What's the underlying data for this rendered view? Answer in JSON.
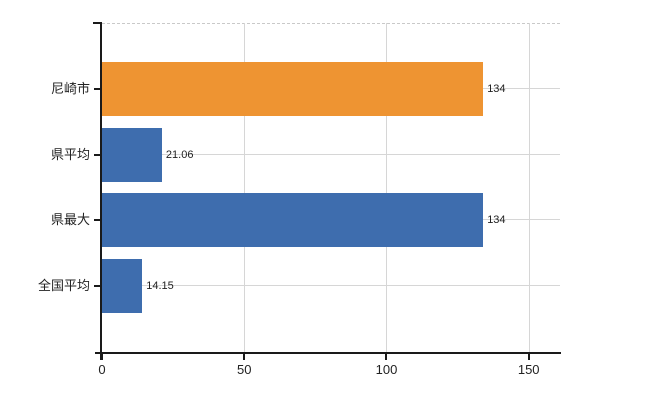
{
  "chart_data": {
    "type": "bar",
    "orientation": "horizontal",
    "title": "",
    "xlabel": "",
    "ylabel": "",
    "categories": [
      "尼崎市",
      "県平均",
      "県最大",
      "全国平均"
    ],
    "values": [
      134,
      21.06,
      134,
      14.15
    ],
    "value_labels": [
      "134",
      "21.06",
      "134",
      "14.15"
    ],
    "bar_colors": [
      "#EE9432",
      "#3E6DAE",
      "#3E6DAE",
      "#3E6DAE"
    ],
    "highlight_color": "#EE9432",
    "default_bar_color": "#3E6DAE",
    "x_tick_labels": [
      "0",
      "50",
      "100",
      "150"
    ],
    "x_tick_values": [
      0,
      50,
      100,
      150
    ],
    "xlim": [
      0,
      161
    ],
    "grid": true,
    "gridline_color": "#d6d6d6",
    "plot_top_border_style": "dashed",
    "axis_color": "#1a1a1a",
    "legend": false
  }
}
